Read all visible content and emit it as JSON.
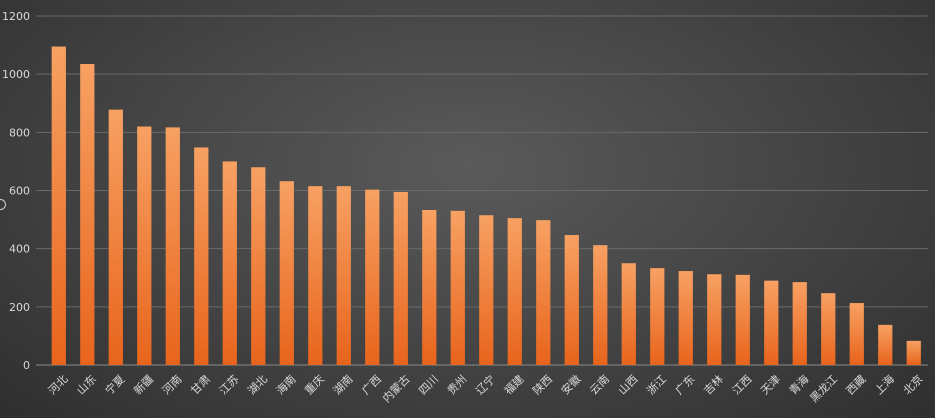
{
  "chart_data": {
    "type": "bar",
    "title": "",
    "xlabel": "",
    "ylabel": "",
    "ylim": [
      0,
      1200
    ],
    "yticks": [
      0,
      200,
      400,
      600,
      800,
      1000,
      1200
    ],
    "grid": true,
    "legend": "none",
    "categories": [
      "河北",
      "山东",
      "宁夏",
      "新疆",
      "河南",
      "甘肃",
      "江苏",
      "湖北",
      "海南",
      "重庆",
      "湖南",
      "广西",
      "内蒙古",
      "四川",
      "贵州",
      "辽宁",
      "福建",
      "陕西",
      "安徽",
      "云南",
      "山西",
      "浙江",
      "广东",
      "吉林",
      "江西",
      "天津",
      "青海",
      "黑龙江",
      "西藏",
      "上海",
      "北京"
    ],
    "values": [
      1095,
      1035,
      878,
      820,
      817,
      748,
      700,
      680,
      632,
      615,
      615,
      603,
      595,
      533,
      530,
      515,
      505,
      498,
      447,
      412,
      350,
      333,
      323,
      312,
      310,
      290,
      285,
      247,
      213,
      138,
      83
    ],
    "colors": {
      "bar_top": "#f7a163",
      "bar_bottom": "#e8641c",
      "background": "#474747"
    }
  }
}
